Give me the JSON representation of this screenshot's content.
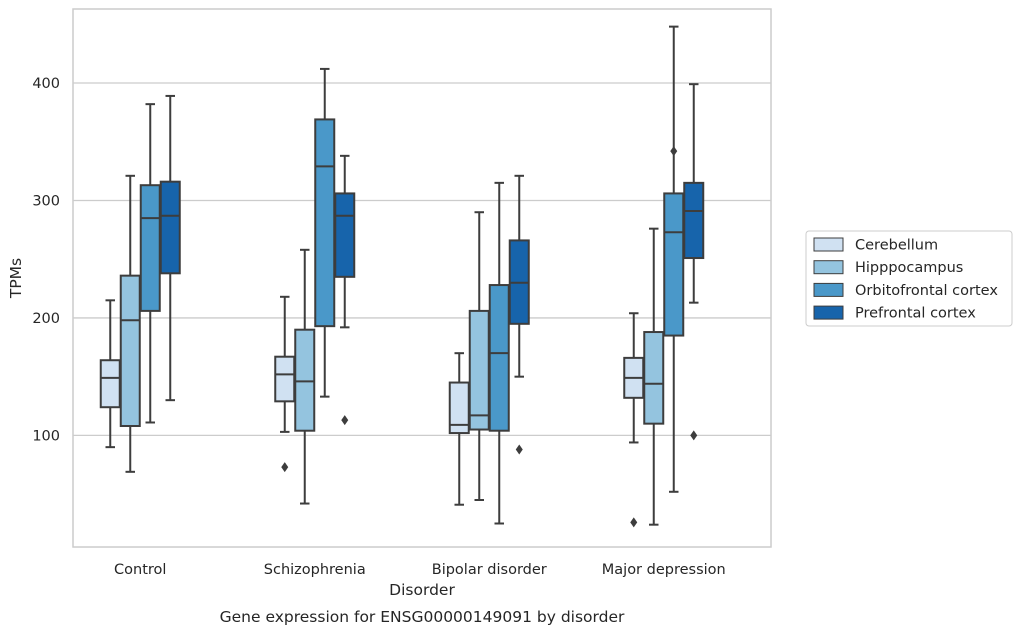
{
  "chart_data": {
    "type": "box",
    "title": "",
    "caption": "Gene expression for ENSG00000149091 by disorder",
    "xlabel": "Disorder",
    "ylabel": "TPMs",
    "ylim": [
      5,
      463
    ],
    "yticks": [
      100,
      200,
      300,
      400
    ],
    "grid": "horizontal",
    "legend_position": "right",
    "categories": [
      "Control",
      "Schizophrenia",
      "Bipolar disorder",
      "Major depression"
    ],
    "series": [
      {
        "name": "Cerebellum",
        "color": "#d0e1f2",
        "boxes": [
          {
            "whisker_low": 90,
            "q1": 124,
            "median": 149,
            "q3": 164,
            "whisker_high": 215,
            "outliers": []
          },
          {
            "whisker_low": 103,
            "q1": 129,
            "median": 152,
            "q3": 167,
            "whisker_high": 218,
            "outliers": [
              73
            ]
          },
          {
            "whisker_low": 41,
            "q1": 102,
            "median": 109,
            "q3": 145,
            "whisker_high": 170,
            "outliers": []
          },
          {
            "whisker_low": 94,
            "q1": 132,
            "median": 149,
            "q3": 166,
            "whisker_high": 204,
            "outliers": [
              26
            ]
          }
        ]
      },
      {
        "name": "Hipppocampus",
        "color": "#94c4df",
        "boxes": [
          {
            "whisker_low": 69,
            "q1": 108,
            "median": 198,
            "q3": 236,
            "whisker_high": 321,
            "outliers": []
          },
          {
            "whisker_low": 42,
            "q1": 104,
            "median": 146,
            "q3": 190,
            "whisker_high": 258,
            "outliers": []
          },
          {
            "whisker_low": 45,
            "q1": 105,
            "median": 117,
            "q3": 206,
            "whisker_high": 290,
            "outliers": []
          },
          {
            "whisker_low": 24,
            "q1": 110,
            "median": 144,
            "q3": 188,
            "whisker_high": 276,
            "outliers": []
          }
        ]
      },
      {
        "name": "Orbitofrontal cortex",
        "color": "#4a98c9",
        "boxes": [
          {
            "whisker_low": 111,
            "q1": 206,
            "median": 285,
            "q3": 313,
            "whisker_high": 382,
            "outliers": []
          },
          {
            "whisker_low": 133,
            "q1": 193,
            "median": 329,
            "q3": 369,
            "whisker_high": 412,
            "outliers": []
          },
          {
            "whisker_low": 25,
            "q1": 104,
            "median": 170,
            "q3": 228,
            "whisker_high": 315,
            "outliers": []
          },
          {
            "whisker_low": 52,
            "q1": 185,
            "median": 273,
            "q3": 306,
            "whisker_high": 448,
            "outliers": [
              342
            ]
          }
        ]
      },
      {
        "name": "Prefrontal cortex",
        "color": "#1764ab",
        "boxes": [
          {
            "whisker_low": 130,
            "q1": 238,
            "median": 287,
            "q3": 316,
            "whisker_high": 389,
            "outliers": []
          },
          {
            "whisker_low": 192,
            "q1": 235,
            "median": 287,
            "q3": 306,
            "whisker_high": 338,
            "outliers": [
              113
            ]
          },
          {
            "whisker_low": 150,
            "q1": 195,
            "median": 230,
            "q3": 266,
            "whisker_high": 321,
            "outliers": [
              88
            ]
          },
          {
            "whisker_low": 213,
            "q1": 251,
            "median": 291,
            "q3": 315,
            "whisker_high": 399,
            "outliers": [
              100
            ]
          }
        ]
      }
    ]
  }
}
